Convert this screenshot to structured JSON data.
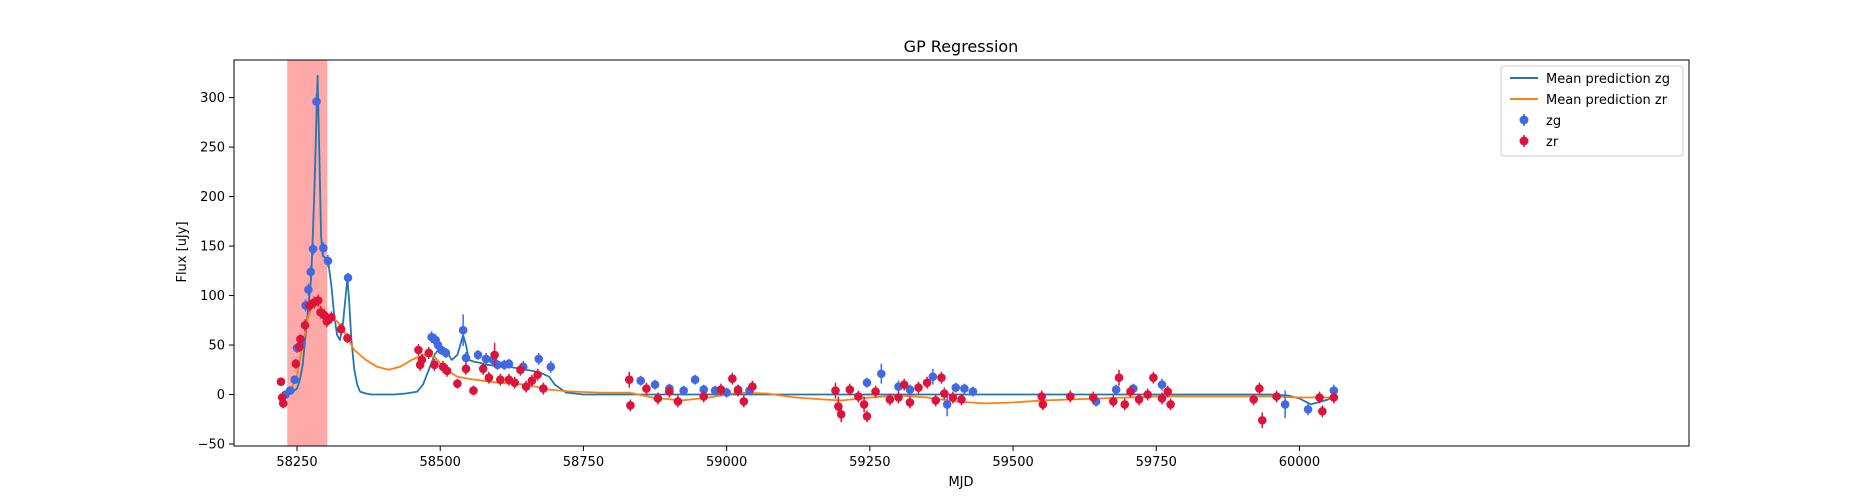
{
  "chart_data": {
    "type": "scatter",
    "title": "GP Regression",
    "xlabel": "MJD",
    "ylabel": "Flux [uJy]",
    "xlim": [
      58140,
      60680
    ],
    "ylim": [
      -52,
      338
    ],
    "x_ticks": [
      58250,
      58500,
      58750,
      59000,
      59250,
      59500,
      59750,
      60000
    ],
    "y_ticks": [
      -50,
      0,
      50,
      100,
      150,
      200,
      250,
      300
    ],
    "legend_position": "top-right",
    "highlight_band": {
      "x_start": 58233,
      "x_end": 58303,
      "color": "#ff9999"
    },
    "colors": {
      "zg_line": "#1f77b4",
      "zr_line": "#ff7f0e",
      "zg_points": "#4169e1",
      "zr_points": "#dc143c"
    },
    "series": [
      {
        "name": "Mean prediction zg",
        "kind": "line",
        "x": [
          58222,
          58240,
          58250,
          58255,
          58260,
          58265,
          58270,
          58275,
          58280,
          58283,
          58286,
          58289,
          58292,
          58295,
          58300,
          58305,
          58310,
          58315,
          58320,
          58325,
          58330,
          58335,
          58338,
          58341,
          58345,
          58350,
          58355,
          58360,
          58370,
          58380,
          58400,
          58420,
          58440,
          58460,
          58470,
          58480,
          58490,
          58500,
          58510,
          58520,
          58530,
          58540,
          58545,
          58550,
          58560,
          58570,
          58580,
          58600,
          58620,
          58640,
          58660,
          58675,
          58690,
          58700,
          58720,
          58750,
          58800,
          58900,
          59000,
          59100,
          59200,
          59300,
          59400,
          59500,
          59600,
          59700,
          59800,
          59900,
          59950,
          59980,
          60000,
          60020,
          60050,
          60065
        ],
        "y": [
          -2,
          2,
          6,
          15,
          30,
          60,
          90,
          120,
          200,
          260,
          322,
          240,
          160,
          140,
          138,
          132,
          110,
          80,
          60,
          55,
          70,
          100,
          118,
          95,
          55,
          25,
          10,
          3,
          1,
          0,
          0,
          0,
          1,
          3,
          10,
          25,
          40,
          48,
          45,
          35,
          40,
          60,
          50,
          35,
          33,
          32,
          30,
          29,
          28,
          26,
          24,
          22,
          18,
          10,
          2,
          0,
          0,
          0,
          0,
          0,
          0,
          0,
          0,
          0,
          0,
          0,
          0,
          0,
          0,
          -1,
          -4,
          -10,
          -5,
          0
        ]
      },
      {
        "name": "Mean prediction zr",
        "kind": "line",
        "x": [
          58222,
          58240,
          58250,
          58260,
          58270,
          58280,
          58290,
          58300,
          58310,
          58320,
          58330,
          58340,
          58350,
          58370,
          58390,
          58410,
          58430,
          58450,
          58470,
          58490,
          58510,
          58530,
          58560,
          58600,
          58650,
          58690,
          58730,
          58780,
          58830,
          58870,
          58920,
          58970,
          59020,
          59070,
          59120,
          59170,
          59200,
          59250,
          59300,
          59350,
          59400,
          59450,
          59500,
          59550,
          59600,
          59650,
          59700,
          59750,
          59800,
          59850,
          59900,
          59950,
          60000,
          60030,
          60065
        ],
        "y": [
          -5,
          5,
          20,
          50,
          80,
          93,
          90,
          82,
          78,
          74,
          66,
          55,
          45,
          35,
          28,
          25,
          28,
          35,
          40,
          38,
          25,
          18,
          15,
          12,
          10,
          5,
          3,
          2,
          2,
          -3,
          -6,
          -3,
          2,
          1,
          -3,
          -5,
          -6,
          -3,
          -1,
          -3,
          -7,
          -9,
          -8,
          -6,
          -5,
          -4,
          -3,
          -2,
          -2,
          -2,
          -2,
          -2,
          -3,
          -3,
          -3
        ]
      },
      {
        "name": "zg",
        "kind": "errorbar",
        "points": [
          {
            "x": 58230,
            "y": 0,
            "err": 4
          },
          {
            "x": 58238,
            "y": 4,
            "err": 4
          },
          {
            "x": 58246,
            "y": 15,
            "err": 4
          },
          {
            "x": 58250,
            "y": 47,
            "err": 5
          },
          {
            "x": 58258,
            "y": 52,
            "err": 5
          },
          {
            "x": 58265,
            "y": 90,
            "err": 6
          },
          {
            "x": 58270,
            "y": 106,
            "err": 6
          },
          {
            "x": 58274,
            "y": 124,
            "err": 6
          },
          {
            "x": 58278,
            "y": 147,
            "err": 6
          },
          {
            "x": 58284,
            "y": 296,
            "err": 8
          },
          {
            "x": 58296,
            "y": 148,
            "err": 6
          },
          {
            "x": 58304,
            "y": 135,
            "err": 6
          },
          {
            "x": 58339,
            "y": 118,
            "err": 5
          },
          {
            "x": 58485,
            "y": 58,
            "err": 6
          },
          {
            "x": 58492,
            "y": 55,
            "err": 6
          },
          {
            "x": 58496,
            "y": 50,
            "err": 5
          },
          {
            "x": 58502,
            "y": 45,
            "err": 5
          },
          {
            "x": 58510,
            "y": 42,
            "err": 5
          },
          {
            "x": 58540,
            "y": 65,
            "err": 16
          },
          {
            "x": 58545,
            "y": 37,
            "err": 6
          },
          {
            "x": 58566,
            "y": 40,
            "err": 5
          },
          {
            "x": 58580,
            "y": 36,
            "err": 6
          },
          {
            "x": 58592,
            "y": 35,
            "err": 6
          },
          {
            "x": 58600,
            "y": 30,
            "err": 5
          },
          {
            "x": 58612,
            "y": 30,
            "err": 5
          },
          {
            "x": 58620,
            "y": 31,
            "err": 5
          },
          {
            "x": 58645,
            "y": 28,
            "err": 6
          },
          {
            "x": 58672,
            "y": 36,
            "err": 6
          },
          {
            "x": 58693,
            "y": 28,
            "err": 6
          },
          {
            "x": 58850,
            "y": 14,
            "err": 5
          },
          {
            "x": 58875,
            "y": 10,
            "err": 5
          },
          {
            "x": 58900,
            "y": 6,
            "err": 5
          },
          {
            "x": 58925,
            "y": 4,
            "err": 5
          },
          {
            "x": 58945,
            "y": 15,
            "err": 5
          },
          {
            "x": 58960,
            "y": 5,
            "err": 5
          },
          {
            "x": 58980,
            "y": 4,
            "err": 5
          },
          {
            "x": 59000,
            "y": 2,
            "err": 5
          },
          {
            "x": 59020,
            "y": 5,
            "err": 5
          },
          {
            "x": 59040,
            "y": 4,
            "err": 5
          },
          {
            "x": 59245,
            "y": 12,
            "err": 5
          },
          {
            "x": 59270,
            "y": 21,
            "err": 10
          },
          {
            "x": 59300,
            "y": 8,
            "err": 6
          },
          {
            "x": 59320,
            "y": 5,
            "err": 5
          },
          {
            "x": 59360,
            "y": 18,
            "err": 8
          },
          {
            "x": 59385,
            "y": -10,
            "err": 12
          },
          {
            "x": 59400,
            "y": 7,
            "err": 5
          },
          {
            "x": 59415,
            "y": 6,
            "err": 5
          },
          {
            "x": 59430,
            "y": 3,
            "err": 5
          },
          {
            "x": 59645,
            "y": -7,
            "err": 5
          },
          {
            "x": 59680,
            "y": 5,
            "err": 5
          },
          {
            "x": 59710,
            "y": 6,
            "err": 5
          },
          {
            "x": 59760,
            "y": 10,
            "err": 6
          },
          {
            "x": 59975,
            "y": -10,
            "err": 14
          },
          {
            "x": 60015,
            "y": -15,
            "err": 6
          },
          {
            "x": 60060,
            "y": 4,
            "err": 6
          }
        ]
      },
      {
        "name": "zr",
        "kind": "errorbar",
        "points": [
          {
            "x": 58222,
            "y": 13,
            "err": 4
          },
          {
            "x": 58224,
            "y": -3,
            "err": 5
          },
          {
            "x": 58226,
            "y": -9,
            "err": 5
          },
          {
            "x": 58248,
            "y": 31,
            "err": 5
          },
          {
            "x": 58254,
            "y": 48,
            "err": 5
          },
          {
            "x": 58256,
            "y": 56,
            "err": 5
          },
          {
            "x": 58264,
            "y": 70,
            "err": 6
          },
          {
            "x": 58272,
            "y": 90,
            "err": 6
          },
          {
            "x": 58280,
            "y": 93,
            "err": 6
          },
          {
            "x": 58287,
            "y": 95,
            "err": 6
          },
          {
            "x": 58291,
            "y": 83,
            "err": 6
          },
          {
            "x": 58298,
            "y": 80,
            "err": 6
          },
          {
            "x": 58302,
            "y": 74,
            "err": 6
          },
          {
            "x": 58310,
            "y": 78,
            "err": 6
          },
          {
            "x": 58327,
            "y": 66,
            "err": 6
          },
          {
            "x": 58338,
            "y": 57,
            "err": 5
          },
          {
            "x": 58462,
            "y": 45,
            "err": 6
          },
          {
            "x": 58465,
            "y": 30,
            "err": 6
          },
          {
            "x": 58468,
            "y": 35,
            "err": 6
          },
          {
            "x": 58480,
            "y": 42,
            "err": 6
          },
          {
            "x": 58490,
            "y": 30,
            "err": 6
          },
          {
            "x": 58505,
            "y": 28,
            "err": 6
          },
          {
            "x": 58512,
            "y": 24,
            "err": 6
          },
          {
            "x": 58530,
            "y": 11,
            "err": 5
          },
          {
            "x": 58545,
            "y": 26,
            "err": 6
          },
          {
            "x": 58558,
            "y": 4,
            "err": 5
          },
          {
            "x": 58575,
            "y": 26,
            "err": 6
          },
          {
            "x": 58585,
            "y": 17,
            "err": 6
          },
          {
            "x": 58595,
            "y": 40,
            "err": 12
          },
          {
            "x": 58605,
            "y": 15,
            "err": 6
          },
          {
            "x": 58620,
            "y": 15,
            "err": 6
          },
          {
            "x": 58630,
            "y": 12,
            "err": 6
          },
          {
            "x": 58640,
            "y": 25,
            "err": 6
          },
          {
            "x": 58650,
            "y": 8,
            "err": 6
          },
          {
            "x": 58660,
            "y": 14,
            "err": 6
          },
          {
            "x": 58670,
            "y": 20,
            "err": 6
          },
          {
            "x": 58680,
            "y": 6,
            "err": 6
          },
          {
            "x": 58830,
            "y": 15,
            "err": 8
          },
          {
            "x": 58832,
            "y": -11,
            "err": 6
          },
          {
            "x": 58860,
            "y": 6,
            "err": 6
          },
          {
            "x": 58880,
            "y": -4,
            "err": 6
          },
          {
            "x": 58900,
            "y": 3,
            "err": 6
          },
          {
            "x": 58915,
            "y": -7,
            "err": 6
          },
          {
            "x": 58960,
            "y": -2,
            "err": 6
          },
          {
            "x": 58990,
            "y": 5,
            "err": 6
          },
          {
            "x": 59010,
            "y": 16,
            "err": 6
          },
          {
            "x": 59020,
            "y": 4,
            "err": 6
          },
          {
            "x": 59030,
            "y": -7,
            "err": 6
          },
          {
            "x": 59045,
            "y": 8,
            "err": 6
          },
          {
            "x": 59190,
            "y": 4,
            "err": 8
          },
          {
            "x": 59195,
            "y": -12,
            "err": 10
          },
          {
            "x": 59200,
            "y": -20,
            "err": 8
          },
          {
            "x": 59215,
            "y": 5,
            "err": 6
          },
          {
            "x": 59230,
            "y": -2,
            "err": 6
          },
          {
            "x": 59240,
            "y": -10,
            "err": 8
          },
          {
            "x": 59245,
            "y": -22,
            "err": 6
          },
          {
            "x": 59260,
            "y": 3,
            "err": 6
          },
          {
            "x": 59285,
            "y": -5,
            "err": 6
          },
          {
            "x": 59300,
            "y": -3,
            "err": 6
          },
          {
            "x": 59310,
            "y": 10,
            "err": 6
          },
          {
            "x": 59320,
            "y": -8,
            "err": 6
          },
          {
            "x": 59335,
            "y": 7,
            "err": 6
          },
          {
            "x": 59350,
            "y": 12,
            "err": 6
          },
          {
            "x": 59365,
            "y": -6,
            "err": 6
          },
          {
            "x": 59375,
            "y": 17,
            "err": 6
          },
          {
            "x": 59380,
            "y": 1,
            "err": 6
          },
          {
            "x": 59395,
            "y": -3,
            "err": 6
          },
          {
            "x": 59410,
            "y": -5,
            "err": 6
          },
          {
            "x": 59550,
            "y": -2,
            "err": 6
          },
          {
            "x": 59552,
            "y": -10,
            "err": 6
          },
          {
            "x": 59600,
            "y": -2,
            "err": 6
          },
          {
            "x": 59640,
            "y": -3,
            "err": 6
          },
          {
            "x": 59675,
            "y": -7,
            "err": 6
          },
          {
            "x": 59685,
            "y": 17,
            "err": 8
          },
          {
            "x": 59695,
            "y": -10,
            "err": 6
          },
          {
            "x": 59705,
            "y": 3,
            "err": 6
          },
          {
            "x": 59720,
            "y": -5,
            "err": 6
          },
          {
            "x": 59735,
            "y": 0,
            "err": 6
          },
          {
            "x": 59745,
            "y": 17,
            "err": 6
          },
          {
            "x": 59760,
            "y": -4,
            "err": 6
          },
          {
            "x": 59770,
            "y": 3,
            "err": 6
          },
          {
            "x": 59775,
            "y": -10,
            "err": 6
          },
          {
            "x": 59920,
            "y": -5,
            "err": 6
          },
          {
            "x": 59930,
            "y": 6,
            "err": 6
          },
          {
            "x": 59935,
            "y": -26,
            "err": 8
          },
          {
            "x": 59960,
            "y": -2,
            "err": 6
          },
          {
            "x": 60035,
            "y": -3,
            "err": 6
          },
          {
            "x": 60040,
            "y": -17,
            "err": 6
          },
          {
            "x": 60060,
            "y": -3,
            "err": 6
          }
        ]
      }
    ]
  }
}
